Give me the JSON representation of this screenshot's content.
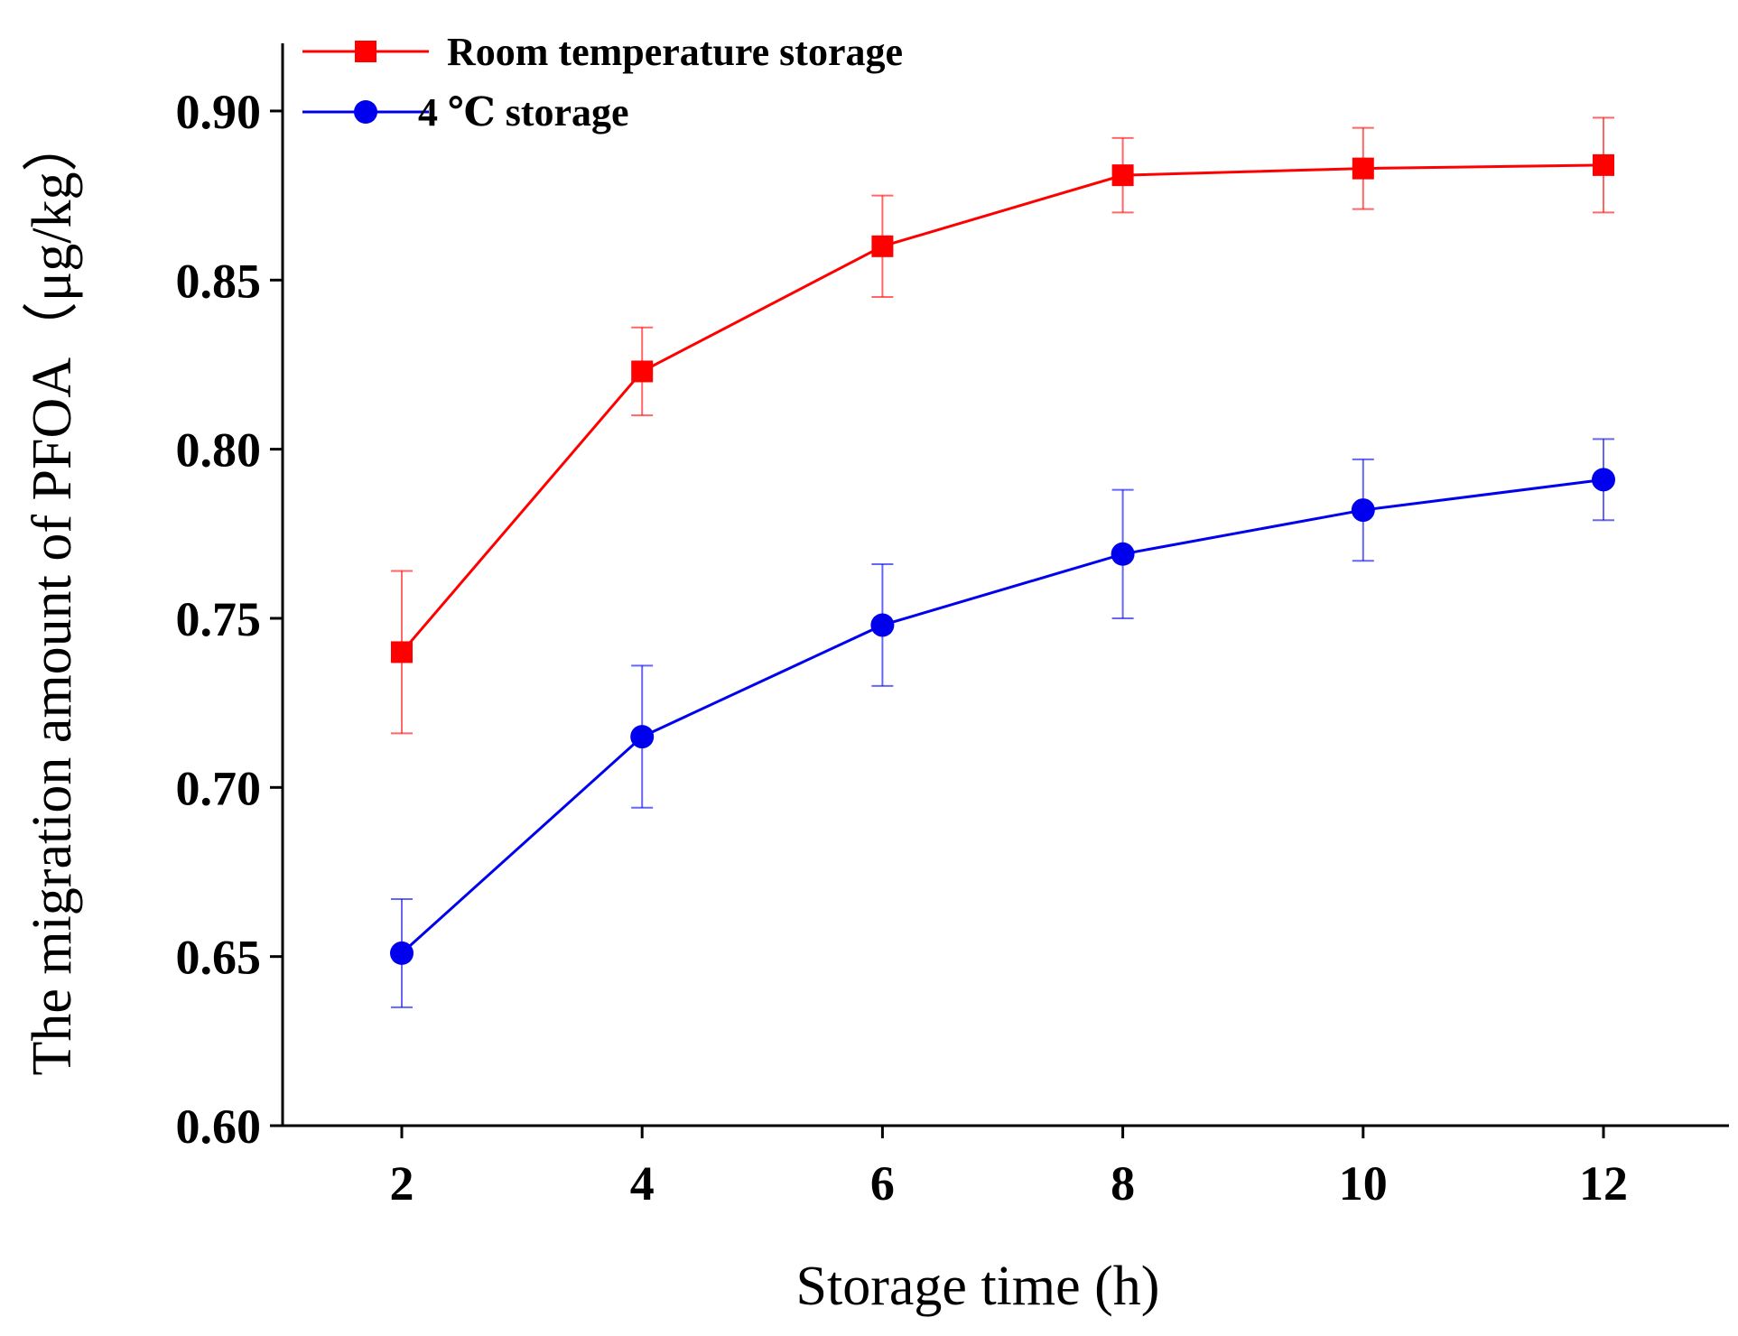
{
  "chart_data": {
    "type": "line",
    "xlabel": "Storage time (h)",
    "ylabel": "The migration amount of PFOA（μg/kg）",
    "x": [
      2,
      4,
      6,
      8,
      10,
      12
    ],
    "xticks": [
      "2",
      "4",
      "6",
      "8",
      "10",
      "12"
    ],
    "xlim": [
      1,
      13
    ],
    "ylim": [
      0.6,
      0.92
    ],
    "yticks": [
      "0.60",
      "0.65",
      "0.70",
      "0.75",
      "0.80",
      "0.85",
      "0.90"
    ],
    "ytick_values": [
      0.6,
      0.65,
      0.7,
      0.75,
      0.8,
      0.85,
      0.9
    ],
    "legend_position": "top-left",
    "grid": false,
    "series": [
      {
        "name": "Room temperature storage",
        "color": "#ff0000",
        "marker": "square",
        "values": [
          0.74,
          0.823,
          0.86,
          0.881,
          0.883,
          0.884
        ],
        "errors": [
          0.024,
          0.013,
          0.015,
          0.011,
          0.012,
          0.014
        ]
      },
      {
        "name": "4 ℃ storage",
        "color": "#0000ee",
        "marker": "circle",
        "values": [
          0.651,
          0.715,
          0.748,
          0.769,
          0.782,
          0.791
        ],
        "errors": [
          0.016,
          0.021,
          0.018,
          0.019,
          0.015,
          0.012
        ]
      }
    ]
  }
}
